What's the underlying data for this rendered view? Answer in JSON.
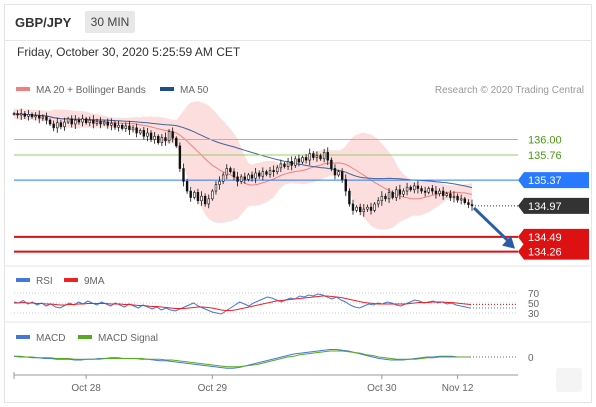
{
  "header": {
    "symbol": "GBP/JPY",
    "timeframe": "30 MIN"
  },
  "datetime": "Friday, October 30, 2020 5:25:59 AM CET",
  "credit": "Research © 2020 Trading Central",
  "colors": {
    "ma20": "#f08080",
    "bollinger": "#fbd3d3",
    "ma50": "#1f4e8c",
    "resistance": "#99cc66",
    "pivot": "#2979ff",
    "support": "#dd1111",
    "last": "#333333",
    "rsi": "#4477dd",
    "ninema": "#ee2222",
    "macd": "#4477dd",
    "macdsig": "#55aa22",
    "arrow": "#2b5ca8"
  },
  "chart_data": [
    {
      "type": "candlestick",
      "title": "GBP/JPY",
      "legend": [
        {
          "name": "MA 20 + Bollinger Bands",
          "color": "#f08080"
        },
        {
          "name": "MA 50",
          "color": "#1f4e8c"
        }
      ],
      "ylim": [
        134.1,
        136.55
      ],
      "levels": [
        {
          "label": "136.00",
          "value": 136.0,
          "kind": "resistance"
        },
        {
          "label": "135.76",
          "value": 135.76,
          "kind": "resistance"
        },
        {
          "label": "135.37",
          "value": 135.37,
          "kind": "pivot"
        },
        {
          "label": "134.97",
          "value": 134.97,
          "kind": "last"
        },
        {
          "label": "134.49",
          "value": 134.49,
          "kind": "support"
        },
        {
          "label": "134.26",
          "value": 134.26,
          "kind": "support"
        }
      ],
      "close": [
        136.4,
        136.38,
        136.4,
        136.36,
        136.39,
        136.35,
        136.37,
        136.33,
        136.35,
        136.3,
        136.24,
        136.18,
        136.26,
        136.2,
        136.27,
        136.32,
        136.24,
        136.3,
        136.27,
        136.32,
        136.26,
        136.3,
        136.25,
        136.28,
        136.24,
        136.27,
        136.22,
        136.25,
        136.19,
        136.22,
        136.17,
        136.21,
        136.15,
        136.18,
        136.1,
        136.14,
        136.05,
        136.1,
        136.0,
        136.05,
        135.95,
        136.03,
        135.98,
        136.12,
        136.02,
        135.9,
        135.55,
        135.35,
        135.2,
        135.1,
        135.18,
        135.05,
        135.12,
        135.0,
        135.08,
        135.2,
        135.3,
        135.35,
        135.45,
        135.55,
        135.5,
        135.42,
        135.35,
        135.42,
        135.38,
        135.45,
        135.4,
        135.48,
        135.43,
        135.5,
        135.46,
        135.52,
        135.5,
        135.56,
        135.62,
        135.58,
        135.66,
        135.6,
        135.7,
        135.65,
        135.72,
        135.68,
        135.78,
        135.72,
        135.75,
        135.7,
        135.8,
        135.68,
        135.55,
        135.45,
        135.5,
        135.38,
        135.2,
        135.0,
        134.9,
        134.95,
        134.88,
        134.92,
        134.95,
        134.9,
        135.0,
        135.05,
        135.12,
        135.08,
        135.18,
        135.1,
        135.22,
        135.15,
        135.2,
        135.26,
        135.22,
        135.28,
        135.24,
        135.2,
        135.18,
        135.24,
        135.2,
        135.16,
        135.2,
        135.13,
        135.16,
        135.1,
        135.12,
        135.06,
        135.08,
        135.02,
        134.99,
        134.97
      ],
      "x_ticks": [
        {
          "label": "Oct 28",
          "index": 20
        },
        {
          "label": "Oct 29",
          "index": 55
        },
        {
          "label": "Oct 30",
          "index": 102
        },
        {
          "label": "Nov 12",
          "index": 123
        }
      ],
      "forecast": {
        "from": 134.97,
        "to": 134.26
      }
    },
    {
      "type": "line",
      "legend": [
        {
          "name": "RSI",
          "color": "#4477dd"
        },
        {
          "name": "9MA",
          "color": "#ee2222"
        }
      ],
      "ylim": [
        20,
        80
      ],
      "y_ticks": [
        {
          "label": "70",
          "value": 70
        },
        {
          "label": "50",
          "value": 50
        },
        {
          "label": "30",
          "value": 30
        }
      ],
      "series": [
        {
          "name": "RSI",
          "values": [
            52,
            50,
            55,
            48,
            52,
            46,
            50,
            44,
            48,
            42,
            40,
            45,
            50,
            46,
            52,
            48,
            54,
            50,
            46,
            52,
            48,
            44,
            50,
            46,
            42,
            48,
            44,
            40,
            46,
            42,
            38,
            42,
            36,
            40,
            36,
            34,
            38,
            42,
            46,
            50,
            44,
            40,
            36,
            32,
            30,
            28,
            34,
            40,
            46,
            52,
            48,
            44,
            50,
            54,
            58,
            62,
            60,
            56,
            52,
            56,
            60,
            58,
            64,
            62,
            66,
            64,
            68,
            66,
            62,
            58,
            62,
            56,
            52,
            46,
            42,
            40,
            44,
            48,
            46,
            50,
            48,
            52,
            50,
            46,
            44,
            48,
            52,
            56,
            54,
            50,
            52,
            54,
            50,
            52,
            48,
            50,
            46,
            44,
            42,
            40
          ]
        },
        {
          "name": "9MA",
          "values": [
            50,
            50,
            51,
            50,
            50,
            49,
            49,
            48,
            48,
            47,
            46,
            46,
            47,
            47,
            48,
            48,
            49,
            49,
            49,
            49,
            49,
            48,
            48,
            48,
            47,
            47,
            46,
            45,
            45,
            44,
            43,
            43,
            42,
            41,
            40,
            39,
            39,
            39,
            40,
            41,
            42,
            42,
            41,
            40,
            38,
            36,
            35,
            35,
            36,
            38,
            40,
            42,
            44,
            46,
            48,
            50,
            52,
            54,
            55,
            56,
            57,
            58,
            59,
            60,
            61,
            62,
            63,
            64,
            64,
            63,
            62,
            61,
            59,
            57,
            55,
            53,
            51,
            50,
            49,
            48,
            48,
            48,
            48,
            48,
            48,
            48,
            49,
            50,
            51,
            51,
            51,
            52,
            52,
            52,
            51,
            51,
            50,
            49,
            48,
            47
          ]
        }
      ]
    },
    {
      "type": "line",
      "legend": [
        {
          "name": "MACD",
          "color": "#4477dd"
        },
        {
          "name": "MACD Signal",
          "color": "#55aa22"
        }
      ],
      "ylim": [
        -0.2,
        0.2
      ],
      "y_ticks": [
        {
          "label": "0",
          "value": 0
        }
      ],
      "series": [
        {
          "name": "MACD",
          "values": [
            0.01,
            0.0,
            0.0,
            -0.01,
            -0.01,
            -0.02,
            -0.02,
            -0.03,
            -0.03,
            -0.03,
            -0.04,
            -0.04,
            -0.03,
            -0.03,
            -0.02,
            -0.02,
            -0.01,
            -0.01,
            -0.02,
            -0.02,
            -0.02,
            -0.03,
            -0.03,
            -0.04,
            -0.05,
            -0.05,
            -0.06,
            -0.07,
            -0.08,
            -0.09,
            -0.1,
            -0.11,
            -0.12,
            -0.13,
            -0.14,
            -0.15,
            -0.15,
            -0.14,
            -0.12,
            -0.1,
            -0.08,
            -0.06,
            -0.04,
            -0.02,
            0.0,
            0.02,
            0.04,
            0.05,
            0.06,
            0.07,
            0.08,
            0.09,
            0.1,
            0.1,
            0.09,
            0.08,
            0.06,
            0.04,
            0.02,
            0.0,
            -0.02,
            -0.03,
            -0.04,
            -0.04,
            -0.04,
            -0.03,
            -0.02,
            -0.01,
            0.0,
            0.0,
            0.01,
            0.01,
            0.01,
            0.0,
            0.0,
            0.0
          ]
        },
        {
          "name": "MACD Signal",
          "values": [
            0.01,
            0.01,
            0.0,
            0.0,
            -0.01,
            -0.01,
            -0.01,
            -0.02,
            -0.02,
            -0.02,
            -0.03,
            -0.03,
            -0.03,
            -0.03,
            -0.03,
            -0.02,
            -0.02,
            -0.02,
            -0.02,
            -0.02,
            -0.02,
            -0.02,
            -0.03,
            -0.03,
            -0.03,
            -0.04,
            -0.04,
            -0.05,
            -0.06,
            -0.07,
            -0.08,
            -0.09,
            -0.1,
            -0.11,
            -0.12,
            -0.13,
            -0.13,
            -0.13,
            -0.12,
            -0.11,
            -0.1,
            -0.08,
            -0.06,
            -0.04,
            -0.02,
            0.0,
            0.01,
            0.03,
            0.04,
            0.05,
            0.06,
            0.07,
            0.08,
            0.08,
            0.08,
            0.07,
            0.06,
            0.05,
            0.03,
            0.02,
            0.0,
            -0.01,
            -0.02,
            -0.03,
            -0.03,
            -0.03,
            -0.03,
            -0.02,
            -0.01,
            -0.01,
            0.0,
            0.0,
            0.0,
            0.0,
            0.0,
            0.0
          ]
        }
      ]
    }
  ]
}
